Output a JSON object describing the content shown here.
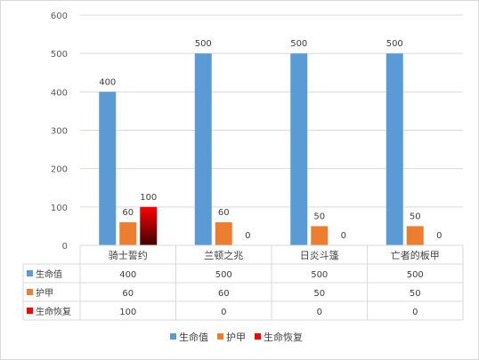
{
  "colors": {
    "series1": "#5B9BD5",
    "series2": "#ED7D31",
    "series3_top": "#FF0000",
    "series3_bottom": "#3F0000",
    "grid": "#D9D9D9",
    "axis_text": "#595959"
  },
  "chart_data": {
    "type": "bar",
    "ylim": [
      0,
      600
    ],
    "yticks": [
      0,
      100,
      200,
      300,
      400,
      500,
      600
    ],
    "categories": [
      "骑士誓约",
      "兰顿之兆",
      "日炎斗篷",
      "亡者的板甲"
    ],
    "series": [
      {
        "name": "生命值",
        "values": [
          400,
          500,
          500,
          500
        ]
      },
      {
        "name": "护甲",
        "values": [
          60,
          60,
          50,
          50
        ]
      },
      {
        "name": "生命恢复",
        "values": [
          100,
          0,
          0,
          0
        ]
      }
    ],
    "gridlines": true,
    "legend_position": "bottom",
    "data_table": true
  }
}
